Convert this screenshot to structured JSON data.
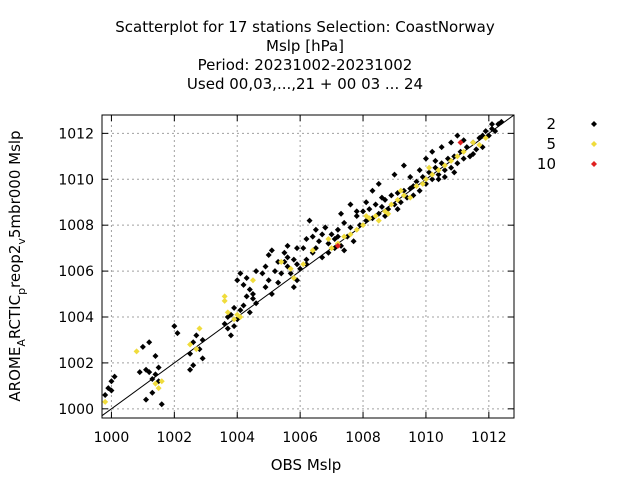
{
  "chart_data": {
    "type": "scatter",
    "title_lines": [
      "Scatterplot for   17 stations Selection: CoastNorway",
      "Mslp [hPa]",
      "Period: 20231002-20231002",
      "Used  00,03,...,21  + 00 03 ... 24"
    ],
    "xlabel": "OBS Mslp",
    "ylabel": "AROME_ARCTIC_prerop2_v5mbr000 Mslp",
    "ylabel_parts": {
      "a": "AROME",
      "a_sub": "A",
      "b": "RCTIC",
      "b_sub": "p",
      "c": "reop2",
      "c_sub": "v",
      "d": "5mbr000 Mslp"
    },
    "xlim": [
      999.7,
      1012.8
    ],
    "ylim": [
      999.6,
      1012.8
    ],
    "xticks": [
      1000,
      1002,
      1004,
      1006,
      1008,
      1010,
      1012
    ],
    "yticks": [
      1000,
      1002,
      1004,
      1006,
      1008,
      1010,
      1012
    ],
    "grid": true,
    "diagonal_line": true,
    "legend_placement": "right",
    "series": [
      {
        "name": "2",
        "color": "#000000",
        "points": [
          [
            999.8,
            1000.6
          ],
          [
            999.9,
            1000.9
          ],
          [
            1000.0,
            1001.2
          ],
          [
            1000.1,
            1001.4
          ],
          [
            1000.0,
            1000.8
          ],
          [
            1000.9,
            1001.6
          ],
          [
            1001.0,
            1002.7
          ],
          [
            1001.1,
            1001.7
          ],
          [
            1001.2,
            1001.6
          ],
          [
            1001.3,
            1001.3
          ],
          [
            1001.4,
            1001.5
          ],
          [
            1001.5,
            1001.2
          ],
          [
            1001.1,
            1000.4
          ],
          [
            1001.3,
            1000.7
          ],
          [
            1001.6,
            1000.2
          ],
          [
            1001.5,
            1001.8
          ],
          [
            1001.2,
            1002.9
          ],
          [
            1001.4,
            1002.3
          ],
          [
            1002.0,
            1003.6
          ],
          [
            1002.1,
            1003.3
          ],
          [
            1002.5,
            1002.4
          ],
          [
            1002.6,
            1002.9
          ],
          [
            1002.7,
            1003.2
          ],
          [
            1002.8,
            1002.6
          ],
          [
            1002.9,
            1002.2
          ],
          [
            1002.5,
            1001.7
          ],
          [
            1002.6,
            1001.9
          ],
          [
            1002.9,
            1003.0
          ],
          [
            1003.6,
            1003.7
          ],
          [
            1003.7,
            1004.0
          ],
          [
            1003.8,
            1003.2
          ],
          [
            1003.9,
            1003.6
          ],
          [
            1004.0,
            1003.9
          ],
          [
            1004.1,
            1004.3
          ],
          [
            1004.3,
            1004.9
          ],
          [
            1004.4,
            1005.2
          ],
          [
            1004.5,
            1005.0
          ],
          [
            1004.6,
            1004.6
          ],
          [
            1004.4,
            1004.2
          ],
          [
            1004.2,
            1004.5
          ],
          [
            1004.0,
            1005.6
          ],
          [
            1004.2,
            1005.4
          ],
          [
            1004.3,
            1005.7
          ],
          [
            1004.1,
            1005.9
          ],
          [
            1004.9,
            1006.2
          ],
          [
            1005.0,
            1005.6
          ],
          [
            1005.2,
            1006.0
          ],
          [
            1005.3,
            1005.5
          ],
          [
            1005.4,
            1005.9
          ],
          [
            1005.5,
            1006.4
          ],
          [
            1005.6,
            1006.6
          ],
          [
            1005.7,
            1005.9
          ],
          [
            1005.0,
            1006.7
          ],
          [
            1005.1,
            1006.9
          ],
          [
            1005.5,
            1006.8
          ],
          [
            1005.8,
            1006.5
          ],
          [
            1005.9,
            1006.3
          ],
          [
            1006.0,
            1006.1
          ],
          [
            1006.1,
            1007.0
          ],
          [
            1006.2,
            1006.3
          ],
          [
            1005.6,
            1006.2
          ],
          [
            1005.9,
            1005.6
          ],
          [
            1005.8,
            1005.3
          ],
          [
            1006.2,
            1007.4
          ],
          [
            1006.3,
            1008.2
          ],
          [
            1006.4,
            1007.5
          ],
          [
            1006.5,
            1007.8
          ],
          [
            1006.6,
            1007.3
          ],
          [
            1006.7,
            1007.6
          ],
          [
            1006.8,
            1007.9
          ],
          [
            1006.9,
            1007.2
          ],
          [
            1007.0,
            1007.6
          ],
          [
            1007.1,
            1007.4
          ],
          [
            1007.2,
            1007.8
          ],
          [
            1007.3,
            1007.1
          ],
          [
            1007.4,
            1008.1
          ],
          [
            1007.5,
            1007.5
          ],
          [
            1007.6,
            1007.9
          ],
          [
            1007.7,
            1007.3
          ],
          [
            1007.8,
            1008.4
          ],
          [
            1007.9,
            1008.0
          ],
          [
            1008.0,
            1008.6
          ],
          [
            1008.1,
            1008.2
          ],
          [
            1008.2,
            1008.7
          ],
          [
            1008.3,
            1008.3
          ],
          [
            1008.4,
            1008.9
          ],
          [
            1008.5,
            1008.5
          ],
          [
            1008.6,
            1008.8
          ],
          [
            1008.7,
            1009.1
          ],
          [
            1008.8,
            1008.7
          ],
          [
            1008.9,
            1009.3
          ],
          [
            1009.0,
            1008.9
          ],
          [
            1009.1,
            1009.4
          ],
          [
            1009.2,
            1009.0
          ],
          [
            1009.3,
            1009.5
          ],
          [
            1009.4,
            1009.2
          ],
          [
            1009.5,
            1009.6
          ],
          [
            1009.6,
            1009.3
          ],
          [
            1009.7,
            1009.9
          ],
          [
            1009.8,
            1009.5
          ],
          [
            1009.9,
            1010.1
          ],
          [
            1010.0,
            1009.8
          ],
          [
            1010.1,
            1010.3
          ],
          [
            1010.2,
            1010.0
          ],
          [
            1010.3,
            1010.5
          ],
          [
            1010.4,
            1010.2
          ],
          [
            1010.5,
            1010.7
          ],
          [
            1010.6,
            1010.4
          ],
          [
            1010.7,
            1010.9
          ],
          [
            1010.8,
            1010.5
          ],
          [
            1010.9,
            1011.0
          ],
          [
            1011.0,
            1010.7
          ],
          [
            1011.1,
            1011.2
          ],
          [
            1011.2,
            1010.9
          ],
          [
            1011.3,
            1011.4
          ],
          [
            1011.4,
            1011.0
          ],
          [
            1011.5,
            1011.6
          ],
          [
            1011.6,
            1011.3
          ],
          [
            1011.7,
            1011.8
          ],
          [
            1011.8,
            1011.9
          ],
          [
            1011.9,
            1012.1
          ],
          [
            1012.0,
            1011.9
          ],
          [
            1012.1,
            1012.2
          ],
          [
            1012.2,
            1012.1
          ],
          [
            1012.3,
            1012.4
          ],
          [
            1012.4,
            1012.5
          ],
          [
            1012.1,
            1012.4
          ],
          [
            1008.3,
            1009.5
          ],
          [
            1008.5,
            1009.8
          ],
          [
            1008.6,
            1009.2
          ],
          [
            1009.0,
            1010.2
          ],
          [
            1009.3,
            1010.6
          ],
          [
            1009.5,
            1010.1
          ],
          [
            1010.0,
            1010.9
          ],
          [
            1010.2,
            1011.2
          ],
          [
            1010.3,
            1010.8
          ],
          [
            1010.5,
            1011.4
          ],
          [
            1010.8,
            1011.6
          ],
          [
            1011.2,
            1011.7
          ],
          [
            1011.0,
            1011.9
          ],
          [
            1009.8,
            1010.4
          ],
          [
            1010.6,
            1010.1
          ],
          [
            1010.9,
            1010.3
          ],
          [
            1007.6,
            1008.9
          ],
          [
            1007.8,
            1008.6
          ],
          [
            1008.1,
            1009.0
          ],
          [
            1007.3,
            1008.5
          ],
          [
            1006.8,
            1007.9
          ],
          [
            1006.5,
            1007.0
          ],
          [
            1006.9,
            1006.8
          ],
          [
            1007.1,
            1007.0
          ],
          [
            1007.4,
            1006.9
          ],
          [
            1007.2,
            1007.5
          ],
          [
            1006.7,
            1006.6
          ],
          [
            1006.4,
            1006.8
          ],
          [
            1006.2,
            1006.5
          ],
          [
            1005.9,
            1007.0
          ],
          [
            1005.3,
            1006.4
          ],
          [
            1005.6,
            1007.1
          ],
          [
            1004.8,
            1005.9
          ],
          [
            1004.6,
            1006.0
          ],
          [
            1004.9,
            1005.3
          ],
          [
            1005.1,
            1005.0
          ],
          [
            1003.8,
            1004.1
          ],
          [
            1003.9,
            1004.4
          ],
          [
            1004.5,
            1004.8
          ],
          [
            1003.7,
            1003.5
          ],
          [
            1008.7,
            1008.4
          ],
          [
            1009.1,
            1008.7
          ],
          [
            1009.6,
            1009.7
          ],
          [
            1010.4,
            1010.0
          ],
          [
            1011.5,
            1011.1
          ],
          [
            1011.8,
            1011.4
          ]
        ]
      },
      {
        "name": "5",
        "color": "#f0dc3c",
        "points": [
          [
            999.8,
            1000.3
          ],
          [
            1000.8,
            1002.5
          ],
          [
            1001.4,
            1001.1
          ],
          [
            1001.5,
            1000.9
          ],
          [
            1001.6,
            1001.2
          ],
          [
            1002.5,
            1002.8
          ],
          [
            1002.8,
            1003.5
          ],
          [
            1002.7,
            1002.6
          ],
          [
            1003.6,
            1004.9
          ],
          [
            1003.6,
            1004.7
          ],
          [
            1003.7,
            1004.2
          ],
          [
            1003.9,
            1003.9
          ],
          [
            1004.0,
            1004.1
          ],
          [
            1004.1,
            1004.0
          ],
          [
            1004.5,
            1005.6
          ],
          [
            1005.4,
            1006.4
          ],
          [
            1005.7,
            1006.1
          ],
          [
            1005.8,
            1005.7
          ],
          [
            1006.1,
            1006.3
          ],
          [
            1006.4,
            1006.9
          ],
          [
            1006.9,
            1007.4
          ],
          [
            1007.0,
            1007.0
          ],
          [
            1007.2,
            1007.2
          ],
          [
            1007.4,
            1007.5
          ],
          [
            1007.6,
            1007.6
          ],
          [
            1007.8,
            1007.8
          ],
          [
            1008.0,
            1008.0
          ],
          [
            1008.2,
            1008.3
          ],
          [
            1008.4,
            1008.4
          ],
          [
            1008.5,
            1008.2
          ],
          [
            1008.7,
            1008.6
          ],
          [
            1008.9,
            1008.9
          ],
          [
            1009.1,
            1009.1
          ],
          [
            1009.3,
            1009.3
          ],
          [
            1009.5,
            1009.2
          ],
          [
            1009.7,
            1009.7
          ],
          [
            1009.9,
            1009.8
          ],
          [
            1010.0,
            1010.0
          ],
          [
            1010.2,
            1010.2
          ],
          [
            1010.4,
            1010.4
          ],
          [
            1010.6,
            1010.6
          ],
          [
            1010.8,
            1010.8
          ],
          [
            1011.0,
            1011.0
          ],
          [
            1011.2,
            1011.2
          ],
          [
            1011.5,
            1011.6
          ],
          [
            1011.7,
            1011.5
          ],
          [
            1011.9,
            1011.8
          ],
          [
            1008.1,
            1008.4
          ],
          [
            1009.2,
            1009.5
          ],
          [
            1010.1,
            1010.5
          ],
          [
            1008.8,
            1008.5
          ]
        ]
      },
      {
        "name": "10",
        "color": "#e02020",
        "points": [
          [
            1007.2,
            1007.1
          ],
          [
            1011.1,
            1011.6
          ]
        ]
      }
    ]
  }
}
